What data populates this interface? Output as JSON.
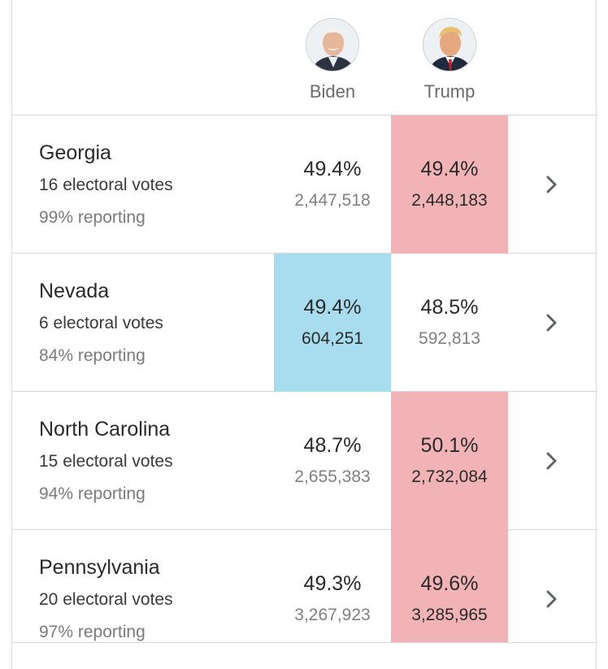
{
  "candidates": [
    {
      "name": "Biden",
      "avatar_icon": "biden-portrait-icon"
    },
    {
      "name": "Trump",
      "avatar_icon": "trump-portrait-icon"
    }
  ],
  "colors": {
    "democrat_win": "#a8dcef",
    "republican_win": "#f2b3b6"
  },
  "states": [
    {
      "name": "Georgia",
      "electoral_votes": "16 electoral votes",
      "reporting": "99% reporting",
      "leader": "Trump",
      "biden": {
        "pct": "49.4%",
        "votes": "2,447,518"
      },
      "trump": {
        "pct": "49.4%",
        "votes": "2,448,183"
      }
    },
    {
      "name": "Nevada",
      "electoral_votes": "6 electoral votes",
      "reporting": "84% reporting",
      "leader": "Biden",
      "biden": {
        "pct": "49.4%",
        "votes": "604,251"
      },
      "trump": {
        "pct": "48.5%",
        "votes": "592,813"
      }
    },
    {
      "name": "North Carolina",
      "electoral_votes": "15 electoral votes",
      "reporting": "94% reporting",
      "leader": "Trump",
      "biden": {
        "pct": "48.7%",
        "votes": "2,655,383"
      },
      "trump": {
        "pct": "50.1%",
        "votes": "2,732,084"
      }
    },
    {
      "name": "Pennsylvania",
      "electoral_votes": "20 electoral votes",
      "reporting": "97% reporting",
      "leader": "Trump",
      "biden": {
        "pct": "49.3%",
        "votes": "3,267,923"
      },
      "trump": {
        "pct": "49.6%",
        "votes": "3,285,965"
      }
    }
  ]
}
